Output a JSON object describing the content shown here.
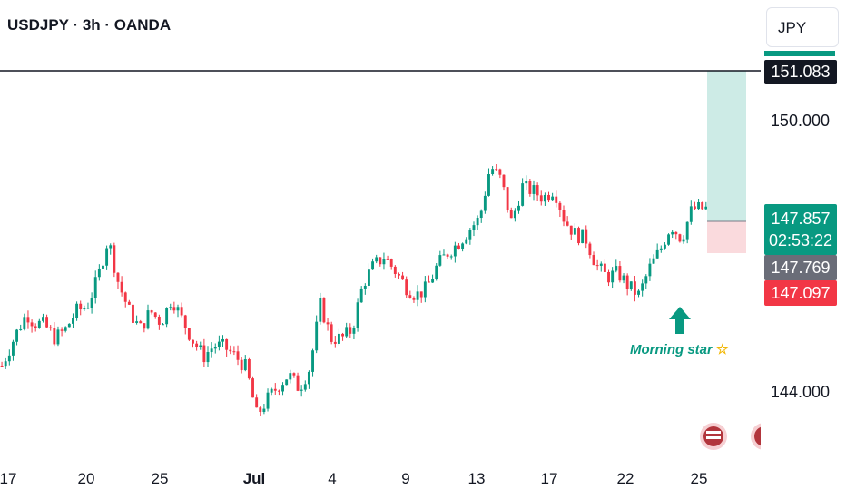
{
  "header": {
    "title": "USDJPY · 3h · OANDA",
    "currency": "JPY"
  },
  "axis": {
    "y_ticks": [
      {
        "value": 150.0,
        "label": "150.000"
      },
      {
        "value": 144.0,
        "label": "144.000"
      }
    ],
    "x_ticks": [
      {
        "label": "17",
        "bold": false
      },
      {
        "label": "20",
        "bold": false
      },
      {
        "label": "25",
        "bold": false
      },
      {
        "label": "Jul",
        "bold": true
      },
      {
        "label": "4",
        "bold": false
      },
      {
        "label": "9",
        "bold": false
      },
      {
        "label": "13",
        "bold": false
      },
      {
        "label": "17",
        "bold": false
      },
      {
        "label": "22",
        "bold": false
      },
      {
        "label": "25",
        "bold": false
      }
    ]
  },
  "price_tags": {
    "target": "151.083",
    "current": "147.857",
    "countdown": "02:53:22",
    "entry": "147.769",
    "stop": "147.097"
  },
  "annotation": {
    "text": "Morning star",
    "icon": "star-icon"
  },
  "colors": {
    "up": "#089981",
    "down": "#f23645",
    "target_zone": "#cdebe6",
    "stop_zone": "#fadadd",
    "entry_tag": "#6a6d78"
  },
  "chart_data": {
    "type": "candlestick",
    "symbol": "USDJPY",
    "interval": "3h",
    "source": "OANDA",
    "ylim": [
      143.0,
      152.4
    ],
    "close_path": [
      [
        0,
        144.4
      ],
      [
        0.02,
        145.1
      ],
      [
        0.035,
        145.55
      ],
      [
        0.045,
        145.35
      ],
      [
        0.06,
        145.3
      ],
      [
        0.075,
        145.0
      ],
      [
        0.09,
        145.2
      ],
      [
        0.105,
        145.6
      ],
      [
        0.12,
        145.7
      ],
      [
        0.135,
        146.3
      ],
      [
        0.15,
        147.2
      ],
      [
        0.165,
        146.2
      ],
      [
        0.18,
        145.6
      ],
      [
        0.195,
        145.2
      ],
      [
        0.21,
        145.6
      ],
      [
        0.225,
        145.35
      ],
      [
        0.24,
        145.9
      ],
      [
        0.255,
        145.4
      ],
      [
        0.27,
        144.95
      ],
      [
        0.285,
        144.6
      ],
      [
        0.3,
        144.85
      ],
      [
        0.315,
        144.8
      ],
      [
        0.33,
        144.6
      ],
      [
        0.345,
        144.35
      ],
      [
        0.36,
        143.3
      ],
      [
        0.375,
        143.65
      ],
      [
        0.39,
        143.95
      ],
      [
        0.405,
        144.2
      ],
      [
        0.42,
        143.9
      ],
      [
        0.435,
        144.35
      ],
      [
        0.45,
        145.75
      ],
      [
        0.465,
        145.0
      ],
      [
        0.48,
        145.0
      ],
      [
        0.495,
        145.2
      ],
      [
        0.51,
        146.2
      ],
      [
        0.525,
        146.6
      ],
      [
        0.54,
        146.8
      ],
      [
        0.555,
        146.5
      ],
      [
        0.57,
        146.15
      ],
      [
        0.585,
        145.95
      ],
      [
        0.6,
        146.1
      ],
      [
        0.615,
        146.6
      ],
      [
        0.63,
        146.9
      ],
      [
        0.645,
        147.1
      ],
      [
        0.66,
        147.4
      ],
      [
        0.675,
        147.65
      ],
      [
        0.69,
        148.8
      ],
      [
        0.705,
        148.5
      ],
      [
        0.72,
        147.55
      ],
      [
        0.735,
        148.35
      ],
      [
        0.75,
        148.25
      ],
      [
        0.765,
        148.1
      ],
      [
        0.78,
        148.3
      ],
      [
        0.795,
        147.6
      ],
      [
        0.81,
        147.3
      ],
      [
        0.825,
        147.2
      ],
      [
        0.84,
        146.6
      ],
      [
        0.855,
        146.35
      ],
      [
        0.87,
        146.45
      ],
      [
        0.885,
        146.15
      ],
      [
        0.9,
        145.95
      ],
      [
        0.915,
        146.55
      ],
      [
        0.93,
        146.95
      ],
      [
        0.945,
        147.5
      ],
      [
        0.96,
        147.2
      ],
      [
        0.975,
        147.857
      ]
    ],
    "reference_line": 151.083,
    "position": {
      "entry": 147.769,
      "target": 151.083,
      "stop": 147.097
    },
    "last_price": 147.857
  }
}
